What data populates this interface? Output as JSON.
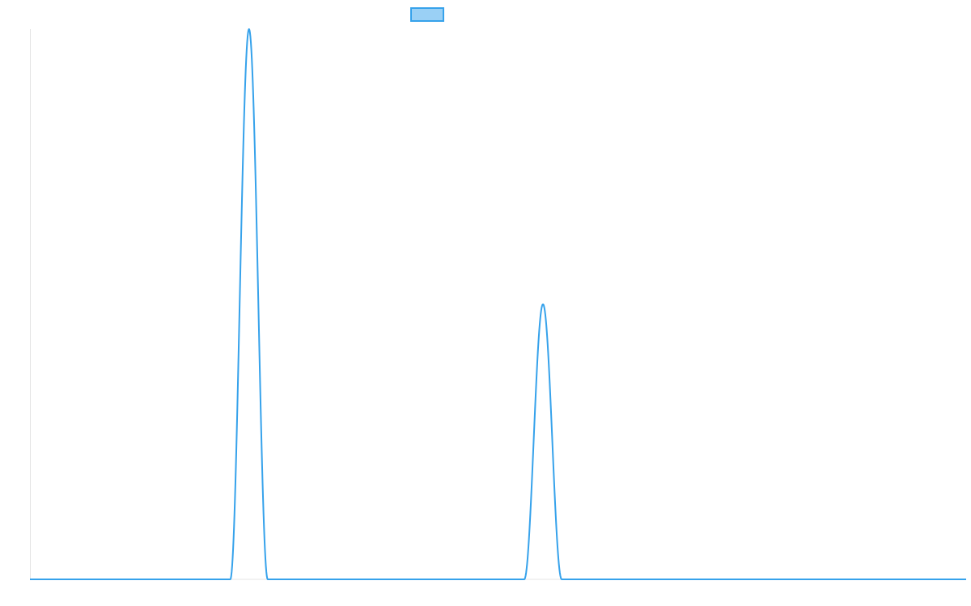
{
  "chart_data": {
    "type": "line",
    "title": "",
    "xlabel": "",
    "ylabel": "",
    "x_range": [
      0,
      100
    ],
    "y_range": [
      0,
      1
    ],
    "grid": false,
    "legend_position": "top-center",
    "series": [
      {
        "color": "#36a2eb",
        "fill_color": "#9ad0f5",
        "peaks": [
          {
            "x": 23.4,
            "height": 1.0,
            "half_width": 2.0
          },
          {
            "x": 54.8,
            "height": 0.5,
            "half_width": 2.0
          }
        ],
        "baseline": 0
      }
    ]
  }
}
